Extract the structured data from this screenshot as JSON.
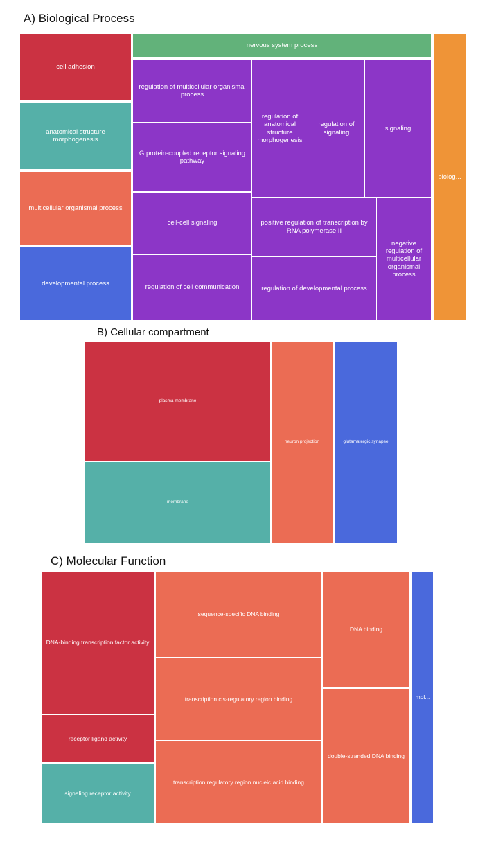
{
  "panels": {
    "bp": {
      "title": "A) Biological Process"
    },
    "cc": {
      "title": "B) Cellular compartment"
    },
    "mf": {
      "title": "C) Molecular Function"
    }
  },
  "colors": {
    "red": "#cb3242",
    "teal": "#55b0a8",
    "orange_red": "#eb6c54",
    "blue": "#4a69dc",
    "green": "#62b27a",
    "purple": "#8c36c7",
    "orange": "#ef9437"
  },
  "chart_data": [
    {
      "type": "treemap",
      "title": "A) Biological Process",
      "tiles": [
        {
          "label": "cell adhesion",
          "color": "red"
        },
        {
          "label": "anatomical structure morphogenesis",
          "color": "teal"
        },
        {
          "label": "multicellular organismal process",
          "color": "orange_red"
        },
        {
          "label": "developmental process",
          "color": "blue"
        },
        {
          "label": "nervous system process",
          "color": "green"
        },
        {
          "label": "regulation of multicellular organismal process",
          "color": "purple"
        },
        {
          "label": "G protein-coupled receptor signaling pathway",
          "color": "purple"
        },
        {
          "label": "cell-cell signaling",
          "color": "purple"
        },
        {
          "label": "regulation of cell communication",
          "color": "purple"
        },
        {
          "label": "regulation of anatomical structure morphogenesis",
          "color": "purple"
        },
        {
          "label": "regulation of signaling",
          "color": "purple"
        },
        {
          "label": "signaling",
          "color": "purple"
        },
        {
          "label": "positive regulation of transcription by RNA polymerase II",
          "color": "purple"
        },
        {
          "label": "regulation of developmental process",
          "color": "purple"
        },
        {
          "label": "negative regulation of multicellular organismal process",
          "color": "purple"
        },
        {
          "label": "biolog...",
          "color": "orange"
        }
      ]
    },
    {
      "type": "treemap",
      "title": "B) Cellular compartment",
      "tiles": [
        {
          "label": "plasma membrane",
          "color": "red"
        },
        {
          "label": "membrane",
          "color": "teal"
        },
        {
          "label": "neuron projection",
          "color": "orange_red"
        },
        {
          "label": "glutamatergic synapse",
          "color": "blue"
        }
      ]
    },
    {
      "type": "treemap",
      "title": "C) Molecular Function",
      "tiles": [
        {
          "label": "DNA-binding transcription factor activity",
          "color": "red"
        },
        {
          "label": "receptor ligand activity",
          "color": "red"
        },
        {
          "label": "signaling receptor activity",
          "color": "teal"
        },
        {
          "label": "sequence-specific DNA binding",
          "color": "orange_red"
        },
        {
          "label": "transcription cis-regulatory region binding",
          "color": "orange_red"
        },
        {
          "label": "transcription regulatory region nucleic acid binding",
          "color": "orange_red"
        },
        {
          "label": "DNA binding",
          "color": "orange_red"
        },
        {
          "label": "double-stranded DNA binding",
          "color": "orange_red"
        },
        {
          "label": "mol...",
          "color": "blue"
        }
      ]
    }
  ]
}
